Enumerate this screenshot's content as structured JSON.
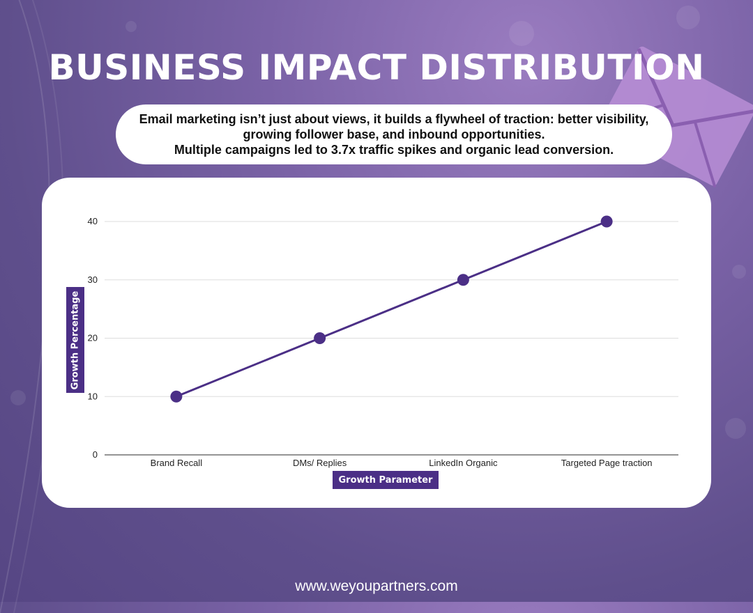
{
  "title": "BUSINESS IMPACT DISTRIBUTION",
  "subtitle": "Email marketing isn’t just about views, it builds a flywheel of traction: better visibility, growing follower base, and inbound opportunities.\nMultiple campaigns led to 3.7x traffic spikes and organic lead conversion.",
  "footer": "www.weyoupartners.com",
  "decor_icon": "envelope-icon",
  "colors": {
    "accent": "#4b2f86",
    "background": "#6f5b9c",
    "card": "#ffffff"
  },
  "chart_data": {
    "type": "line",
    "categories": [
      "Brand Recall",
      "DMs/ Replies",
      "LinkedIn Organic",
      "Targeted Page traction"
    ],
    "series": [
      {
        "values": [
          10,
          20,
          30,
          40
        ]
      }
    ],
    "title": "",
    "xlabel": "Growth Parameter",
    "ylabel": "Growth Percentage",
    "ylim": [
      0,
      40
    ],
    "yticks": [
      0,
      10,
      20,
      30,
      40
    ],
    "grid": true,
    "legend": "none"
  }
}
